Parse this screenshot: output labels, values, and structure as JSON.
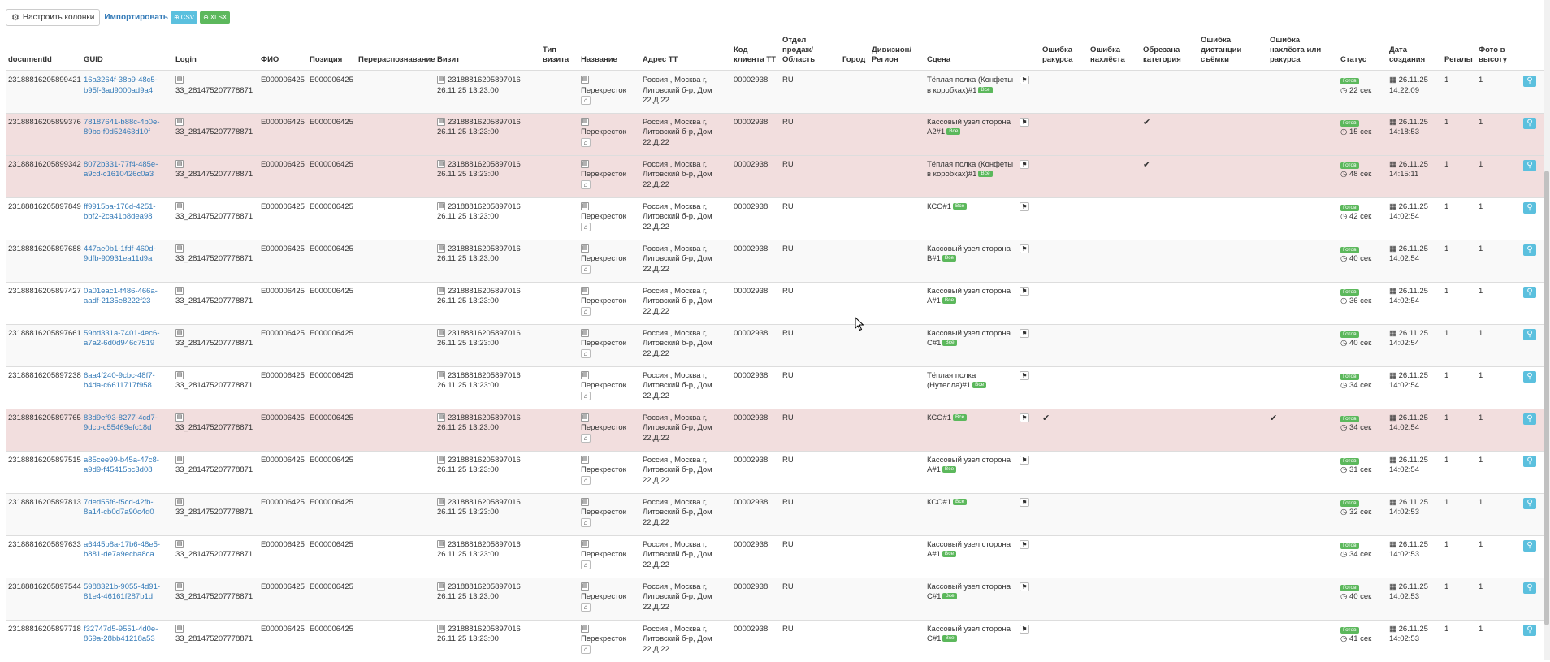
{
  "toolbar": {
    "columns_button": "Настроить колонки",
    "gear_icon": "gear-icon",
    "import_label": "Импортировать",
    "csv_label": "CSV",
    "xlsx_label": "XLSX",
    "csv_color": "#5bc0de",
    "xlsx_color": "#5cb85c"
  },
  "columns": [
    "documentId",
    "GUID",
    "Login",
    "ФИО",
    "Позиция",
    "Перераспознавание",
    "Визит",
    "Тип визита",
    "Название",
    "Адрес ТТ",
    "Код клиента ТТ",
    "Отдел продаж/ Область",
    "Город",
    "Дивизион/ Регион",
    "Сцена",
    "",
    "Ошибка ракурса",
    "Ошибка нахлёста",
    "Обрезана категория",
    "Ошибка дистанции съёмки",
    "Ошибка нахлёста или ракурса",
    "Статус",
    "Дата создания",
    "Регалы",
    "Фото в высоту",
    ""
  ],
  "common": {
    "login": "33_281475207778871",
    "fio": "E000006425",
    "position": "E000006425",
    "visit_id": "23188816205897016",
    "visit_date": "26.11.25 13:23:00",
    "store_name": "Перекресток",
    "address": "Россия , Москва г, Литовский б-р, Дом 22,Д.22",
    "client_code": "00002938",
    "region": "RU",
    "ok_label": "Все",
    "status_label": "Готов",
    "check_mark": "✔"
  },
  "rows": [
    {
      "doc": "23188816205899421",
      "guid": "16a3264f-38b9-48c5-b95f-3ad9000ad9a4",
      "scene": "Тёплая полка (Конфеты в коробках)#1",
      "err_angle": "",
      "err_overlap": "",
      "cut_cat": "",
      "err_dist": "",
      "err_ov_angle": "",
      "dur": "22 сек",
      "date": "26.11.25",
      "time": "14:22:09",
      "racks": "1",
      "photo": "1",
      "error": false
    },
    {
      "doc": "23188816205899376",
      "guid": "78187641-b88c-4b0e-89bc-f0d52463d10f",
      "scene": "Кассовый узел сторона А2#1",
      "err_angle": "",
      "err_overlap": "",
      "cut_cat": "✔",
      "err_dist": "",
      "err_ov_angle": "",
      "dur": "15 сек",
      "date": "26.11.25",
      "time": "14:18:53",
      "racks": "1",
      "photo": "1",
      "error": true
    },
    {
      "doc": "23188816205899342",
      "guid": "8072b331-77f4-485e-a9cd-c1610426c0a3",
      "scene": "Тёплая полка (Конфеты в коробках)#1",
      "err_angle": "",
      "err_overlap": "",
      "cut_cat": "✔",
      "err_dist": "",
      "err_ov_angle": "",
      "dur": "48 сек",
      "date": "26.11.25",
      "time": "14:15:11",
      "racks": "1",
      "photo": "1",
      "error": true
    },
    {
      "doc": "23188816205897849",
      "guid": "ff9915ba-176d-4251-bbf2-2ca41b8dea98",
      "scene": "КСО#1",
      "err_angle": "",
      "err_overlap": "",
      "cut_cat": "",
      "err_dist": "",
      "err_ov_angle": "",
      "dur": "42 сек",
      "date": "26.11.25",
      "time": "14:02:54",
      "racks": "1",
      "photo": "1",
      "error": false
    },
    {
      "doc": "23188816205897688",
      "guid": "447ae0b1-1fdf-460d-9dfb-90931ea11d9a",
      "scene": "Кассовый узел сторона В#1",
      "err_angle": "",
      "err_overlap": "",
      "cut_cat": "",
      "err_dist": "",
      "err_ov_angle": "",
      "dur": "40 сек",
      "date": "26.11.25",
      "time": "14:02:54",
      "racks": "1",
      "photo": "1",
      "error": false
    },
    {
      "doc": "23188816205897427",
      "guid": "0a01eac1-f486-466a-aadf-2135e8222f23",
      "scene": "Кассовый узел сторона А#1",
      "err_angle": "",
      "err_overlap": "",
      "cut_cat": "",
      "err_dist": "",
      "err_ov_angle": "",
      "dur": "36 сек",
      "date": "26.11.25",
      "time": "14:02:54",
      "racks": "1",
      "photo": "1",
      "error": false
    },
    {
      "doc": "23188816205897661",
      "guid": "59bd331a-7401-4ec6-a7a2-6d0d946c7519",
      "scene": "Кассовый узел сторона С#1",
      "err_angle": "",
      "err_overlap": "",
      "cut_cat": "",
      "err_dist": "",
      "err_ov_angle": "",
      "dur": "40 сек",
      "date": "26.11.25",
      "time": "14:02:54",
      "racks": "1",
      "photo": "1",
      "error": false
    },
    {
      "doc": "23188816205897238",
      "guid": "6aa4f240-9cbc-48f7-b4da-c6611717f958",
      "scene": "Тёплая полка (Нутелла)#1",
      "err_angle": "",
      "err_overlap": "",
      "cut_cat": "",
      "err_dist": "",
      "err_ov_angle": "",
      "dur": "34 сек",
      "date": "26.11.25",
      "time": "14:02:54",
      "racks": "1",
      "photo": "1",
      "error": false
    },
    {
      "doc": "23188816205897765",
      "guid": "83d9ef93-8277-4cd7-9dcb-c55469efc18d",
      "scene": "КСО#1",
      "err_angle": "✔",
      "err_overlap": "",
      "cut_cat": "",
      "err_dist": "",
      "err_ov_angle": "✔",
      "dur": "34 сек",
      "date": "26.11.25",
      "time": "14:02:54",
      "racks": "1",
      "photo": "1",
      "error": true
    },
    {
      "doc": "23188816205897515",
      "guid": "a85cee99-b45a-47c8-a9d9-f45415bc3d08",
      "scene": "Кассовый узел сторона А#1",
      "err_angle": "",
      "err_overlap": "",
      "cut_cat": "",
      "err_dist": "",
      "err_ov_angle": "",
      "dur": "31 сек",
      "date": "26.11.25",
      "time": "14:02:54",
      "racks": "1",
      "photo": "1",
      "error": false
    },
    {
      "doc": "23188816205897813",
      "guid": "7ded55f6-f5cd-42fb-8a14-cb0d7a90c4d0",
      "scene": "КСО#1",
      "err_angle": "",
      "err_overlap": "",
      "cut_cat": "",
      "err_dist": "",
      "err_ov_angle": "",
      "dur": "32 сек",
      "date": "26.11.25",
      "time": "14:02:53",
      "racks": "1",
      "photo": "1",
      "error": false
    },
    {
      "doc": "23188816205897633",
      "guid": "a6445b8a-17b6-48e5-b881-de7a9ecba8ca",
      "scene": "Кассовый узел сторона А#1",
      "err_angle": "",
      "err_overlap": "",
      "cut_cat": "",
      "err_dist": "",
      "err_ov_angle": "",
      "dur": "34 сек",
      "date": "26.11.25",
      "time": "14:02:53",
      "racks": "1",
      "photo": "1",
      "error": false
    },
    {
      "doc": "23188816205897544",
      "guid": "5988321b-9055-4d91-81e4-46161f287b1d",
      "scene": "Кассовый узел сторона С#1",
      "err_angle": "",
      "err_overlap": "",
      "cut_cat": "",
      "err_dist": "",
      "err_ov_angle": "",
      "dur": "40 сек",
      "date": "26.11.25",
      "time": "14:02:53",
      "racks": "1",
      "photo": "1",
      "error": false
    },
    {
      "doc": "23188816205897718",
      "guid": "f32747d5-9551-4d0e-869a-28bb41218a53",
      "scene": "Кассовый узел сторона С#1",
      "err_angle": "",
      "err_overlap": "",
      "cut_cat": "",
      "err_dist": "",
      "err_ov_angle": "",
      "dur": "41 сек",
      "date": "26.11.25",
      "time": "14:02:53",
      "racks": "1",
      "photo": "1",
      "error": false
    }
  ]
}
